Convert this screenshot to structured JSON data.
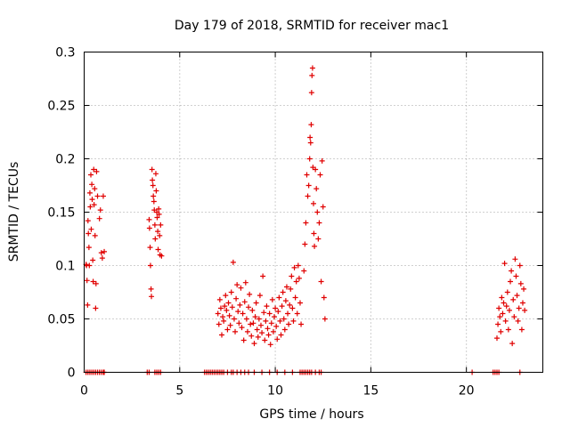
{
  "chart_data": {
    "type": "scatter",
    "title": "Day 179 of 2018, SRMTID for receiver mac1",
    "xlabel": "GPS time / hours",
    "ylabel": "SRMTID / TECUs",
    "xlim": [
      0,
      24
    ],
    "ylim": [
      0,
      0.3
    ],
    "xticks": [
      0,
      5,
      10,
      15,
      20
    ],
    "xtick_labels": [
      "0",
      "5",
      "10",
      "15",
      "20"
    ],
    "yticks": [
      0,
      0.05,
      0.1,
      0.15,
      0.2,
      0.25,
      0.3
    ],
    "ytick_labels": [
      "0",
      "0.05",
      "0.1",
      "0.15",
      "0.2",
      "0.25",
      "0.3"
    ],
    "grid": true,
    "marker": "+",
    "color": "#e00000",
    "series": [
      {
        "name": "SRMTID",
        "points": [
          [
            0.1,
            0.101
          ],
          [
            0.12,
            0.1
          ],
          [
            0.15,
            0.086
          ],
          [
            0.18,
            0.063
          ],
          [
            0.2,
            0.142
          ],
          [
            0.22,
            0.13
          ],
          [
            0.25,
            0.117
          ],
          [
            0.27,
            0.1
          ],
          [
            0.3,
            0.168
          ],
          [
            0.32,
            0.155
          ],
          [
            0.35,
            0.185
          ],
          [
            0.37,
            0.134
          ],
          [
            0.4,
            0.176
          ],
          [
            0.42,
            0.162
          ],
          [
            0.45,
            0.105
          ],
          [
            0.47,
            0.085
          ],
          [
            0.5,
            0.19
          ],
          [
            0.52,
            0.157
          ],
          [
            0.55,
            0.172
          ],
          [
            0.57,
            0.128
          ],
          [
            0.6,
            0.06
          ],
          [
            0.62,
            0.083
          ],
          [
            0.65,
            0.188
          ],
          [
            0.7,
            0.165
          ],
          [
            0.8,
            0.144
          ],
          [
            0.85,
            0.152
          ],
          [
            0.9,
            0.112
          ],
          [
            0.95,
            0.107
          ],
          [
            1.0,
            0.165
          ],
          [
            1.05,
            0.113
          ],
          [
            3.4,
            0.143
          ],
          [
            3.42,
            0.135
          ],
          [
            3.45,
            0.117
          ],
          [
            3.47,
            0.1
          ],
          [
            3.5,
            0.078
          ],
          [
            3.52,
            0.071
          ],
          [
            3.55,
            0.19
          ],
          [
            3.57,
            0.18
          ],
          [
            3.6,
            0.175
          ],
          [
            3.62,
            0.165
          ],
          [
            3.65,
            0.16
          ],
          [
            3.67,
            0.152
          ],
          [
            3.7,
            0.138
          ],
          [
            3.72,
            0.125
          ],
          [
            3.75,
            0.186
          ],
          [
            3.77,
            0.17
          ],
          [
            3.8,
            0.15
          ],
          [
            3.82,
            0.145
          ],
          [
            3.85,
            0.132
          ],
          [
            3.87,
            0.115
          ],
          [
            3.9,
            0.153
          ],
          [
            3.92,
            0.148
          ],
          [
            3.95,
            0.128
          ],
          [
            3.97,
            0.11
          ],
          [
            4.0,
            0.138
          ],
          [
            4.05,
            0.109
          ],
          [
            7.0,
            0.055
          ],
          [
            7.05,
            0.045
          ],
          [
            7.1,
            0.068
          ],
          [
            7.15,
            0.06
          ],
          [
            7.2,
            0.035
          ],
          [
            7.25,
            0.052
          ],
          [
            7.3,
            0.048
          ],
          [
            7.35,
            0.062
          ],
          [
            7.4,
            0.072
          ],
          [
            7.45,
            0.058
          ],
          [
            7.5,
            0.04
          ],
          [
            7.55,
            0.065
          ],
          [
            7.6,
            0.053
          ],
          [
            7.65,
            0.044
          ],
          [
            7.7,
            0.075
          ],
          [
            7.75,
            0.061
          ],
          [
            7.8,
            0.103
          ],
          [
            7.85,
            0.05
          ],
          [
            7.9,
            0.038
          ],
          [
            7.95,
            0.069
          ],
          [
            8.0,
            0.082
          ],
          [
            8.05,
            0.057
          ],
          [
            8.1,
            0.046
          ],
          [
            8.15,
            0.063
          ],
          [
            8.2,
            0.079
          ],
          [
            8.25,
            0.042
          ],
          [
            8.3,
            0.055
          ],
          [
            8.35,
            0.03
          ],
          [
            8.4,
            0.066
          ],
          [
            8.45,
            0.084
          ],
          [
            8.5,
            0.05
          ],
          [
            8.55,
            0.038
          ],
          [
            8.6,
            0.061
          ],
          [
            8.65,
            0.073
          ],
          [
            8.7,
            0.045
          ],
          [
            8.75,
            0.034
          ],
          [
            8.8,
            0.058
          ],
          [
            8.85,
            0.046
          ],
          [
            8.9,
            0.027
          ],
          [
            8.95,
            0.052
          ],
          [
            9.0,
            0.065
          ],
          [
            9.05,
            0.04
          ],
          [
            9.1,
            0.033
          ],
          [
            9.15,
            0.05
          ],
          [
            9.2,
            0.072
          ],
          [
            9.25,
            0.044
          ],
          [
            9.3,
            0.037
          ],
          [
            9.35,
            0.09
          ],
          [
            9.4,
            0.056
          ],
          [
            9.45,
            0.03
          ],
          [
            9.5,
            0.048
          ],
          [
            9.55,
            0.062
          ],
          [
            9.6,
            0.041
          ],
          [
            9.65,
            0.035
          ],
          [
            9.7,
            0.055
          ],
          [
            9.75,
            0.026
          ],
          [
            9.8,
            0.046
          ],
          [
            9.85,
            0.068
          ],
          [
            9.9,
            0.038
          ],
          [
            9.95,
            0.052
          ],
          [
            10.0,
            0.06
          ],
          [
            10.05,
            0.043
          ],
          [
            10.1,
            0.031
          ],
          [
            10.15,
            0.057
          ],
          [
            10.2,
            0.07
          ],
          [
            10.25,
            0.048
          ],
          [
            10.3,
            0.035
          ],
          [
            10.35,
            0.062
          ],
          [
            10.4,
            0.075
          ],
          [
            10.45,
            0.05
          ],
          [
            10.5,
            0.04
          ],
          [
            10.55,
            0.067
          ],
          [
            10.6,
            0.08
          ],
          [
            10.65,
            0.055
          ],
          [
            10.7,
            0.045
          ],
          [
            10.75,
            0.063
          ],
          [
            10.8,
            0.078
          ],
          [
            10.85,
            0.09
          ],
          [
            10.9,
            0.06
          ],
          [
            10.95,
            0.048
          ],
          [
            11.0,
            0.098
          ],
          [
            11.05,
            0.07
          ],
          [
            11.1,
            0.085
          ],
          [
            11.15,
            0.055
          ],
          [
            11.2,
            0.1
          ],
          [
            11.25,
            0.088
          ],
          [
            11.3,
            0.065
          ],
          [
            11.35,
            0.045
          ],
          [
            11.5,
            0.095
          ],
          [
            11.55,
            0.12
          ],
          [
            11.6,
            0.14
          ],
          [
            11.65,
            0.185
          ],
          [
            11.7,
            0.165
          ],
          [
            11.75,
            0.175
          ],
          [
            11.8,
            0.2
          ],
          [
            11.82,
            0.22
          ],
          [
            11.85,
            0.215
          ],
          [
            11.88,
            0.232
          ],
          [
            11.9,
            0.262
          ],
          [
            11.92,
            0.278
          ],
          [
            11.95,
            0.285
          ],
          [
            11.97,
            0.192
          ],
          [
            12.0,
            0.158
          ],
          [
            12.02,
            0.13
          ],
          [
            12.05,
            0.118
          ],
          [
            12.1,
            0.19
          ],
          [
            12.15,
            0.172
          ],
          [
            12.2,
            0.15
          ],
          [
            12.25,
            0.125
          ],
          [
            12.3,
            0.14
          ],
          [
            12.35,
            0.185
          ],
          [
            12.4,
            0.085
          ],
          [
            12.45,
            0.198
          ],
          [
            12.5,
            0.155
          ],
          [
            12.55,
            0.07
          ],
          [
            12.6,
            0.05
          ],
          [
            21.6,
            0.032
          ],
          [
            21.65,
            0.045
          ],
          [
            21.7,
            0.06
          ],
          [
            21.75,
            0.052
          ],
          [
            21.8,
            0.038
          ],
          [
            21.85,
            0.07
          ],
          [
            21.9,
            0.055
          ],
          [
            21.95,
            0.065
          ],
          [
            22.0,
            0.102
          ],
          [
            22.05,
            0.048
          ],
          [
            22.1,
            0.062
          ],
          [
            22.15,
            0.075
          ],
          [
            22.2,
            0.04
          ],
          [
            22.25,
            0.058
          ],
          [
            22.3,
            0.085
          ],
          [
            22.35,
            0.095
          ],
          [
            22.4,
            0.027
          ],
          [
            22.45,
            0.068
          ],
          [
            22.5,
            0.052
          ],
          [
            22.55,
            0.106
          ],
          [
            22.6,
            0.09
          ],
          [
            22.65,
            0.072
          ],
          [
            22.7,
            0.048
          ],
          [
            22.75,
            0.06
          ],
          [
            22.8,
            0.1
          ],
          [
            22.85,
            0.083
          ],
          [
            22.9,
            0.04
          ],
          [
            22.95,
            0.065
          ],
          [
            23.0,
            0.078
          ],
          [
            23.05,
            0.058
          ]
        ],
        "zero_points": [
          0.1,
          0.2,
          0.3,
          0.4,
          0.5,
          0.6,
          0.7,
          0.8,
          0.9,
          1.0,
          1.05,
          3.3,
          3.4,
          3.7,
          3.8,
          3.9,
          4.0,
          6.3,
          6.4,
          6.5,
          6.6,
          6.7,
          6.8,
          6.9,
          7.0,
          7.1,
          7.2,
          7.3,
          7.5,
          7.7,
          7.8,
          8.0,
          8.2,
          8.4,
          8.6,
          8.9,
          9.3,
          9.7,
          10.1,
          10.5,
          10.9,
          11.3,
          11.4,
          11.5,
          11.6,
          11.7,
          11.8,
          11.9,
          12.1,
          12.3,
          12.4,
          20.3,
          21.4,
          21.5,
          21.6,
          21.7,
          22.8
        ]
      }
    ]
  }
}
